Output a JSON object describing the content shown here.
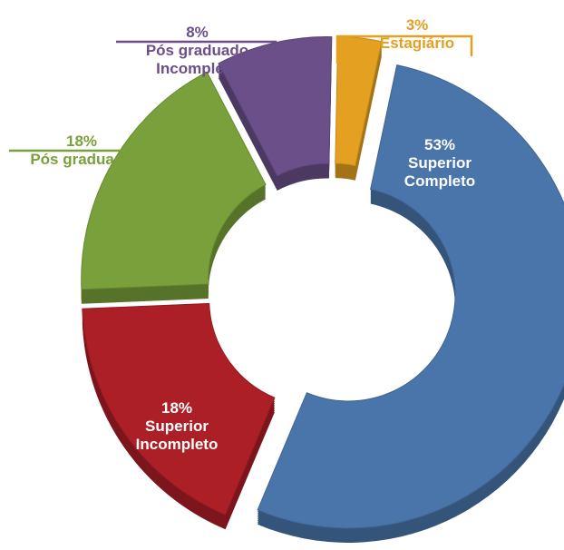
{
  "chart_data": {
    "type": "pie",
    "donut": true,
    "categories": [
      "Superior Completo",
      "Superior Incompleto",
      "Pós graduado",
      "Pós graduado Incompleto",
      "Estagiário"
    ],
    "values": [
      53,
      18,
      18,
      8,
      3
    ],
    "value_labels": [
      "53%",
      "18%",
      "18%",
      "8%",
      "3%"
    ],
    "colors": [
      "#4a75aa",
      "#ac1f27",
      "#79a03a",
      "#6a4f88",
      "#e4a020"
    ]
  }
}
